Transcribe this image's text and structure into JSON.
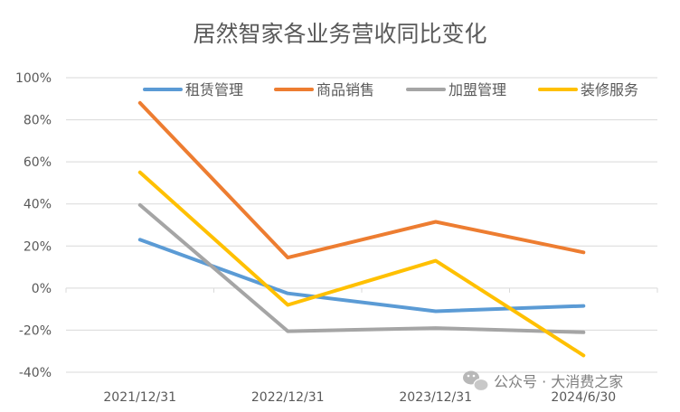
{
  "chart_data": {
    "type": "line",
    "title": "居然智家各业务营收同比变化",
    "categories": [
      "2021/12/31",
      "2022/12/31",
      "2023/12/31",
      "2024/6/30"
    ],
    "yticks": [
      "100%",
      "80%",
      "60%",
      "40%",
      "20%",
      "0%",
      "-20%",
      "-40%"
    ],
    "ylim": [
      -40,
      100
    ],
    "series": [
      {
        "name": "租赁管理",
        "color": "#5B9BD5",
        "values": [
          23,
          -2.5,
          -11,
          -8.5
        ]
      },
      {
        "name": "商品销售",
        "color": "#ED7D31",
        "values": [
          88,
          14.5,
          31.5,
          17
        ]
      },
      {
        "name": "加盟管理",
        "color": "#A5A5A5",
        "values": [
          39.5,
          -20.5,
          -19,
          -21
        ]
      },
      {
        "name": "装修服务",
        "color": "#FFC000",
        "values": [
          55,
          -8,
          13,
          -32
        ]
      }
    ],
    "grid": true,
    "legend_position": "top",
    "watermark": "公众号 · 大消费之家"
  }
}
